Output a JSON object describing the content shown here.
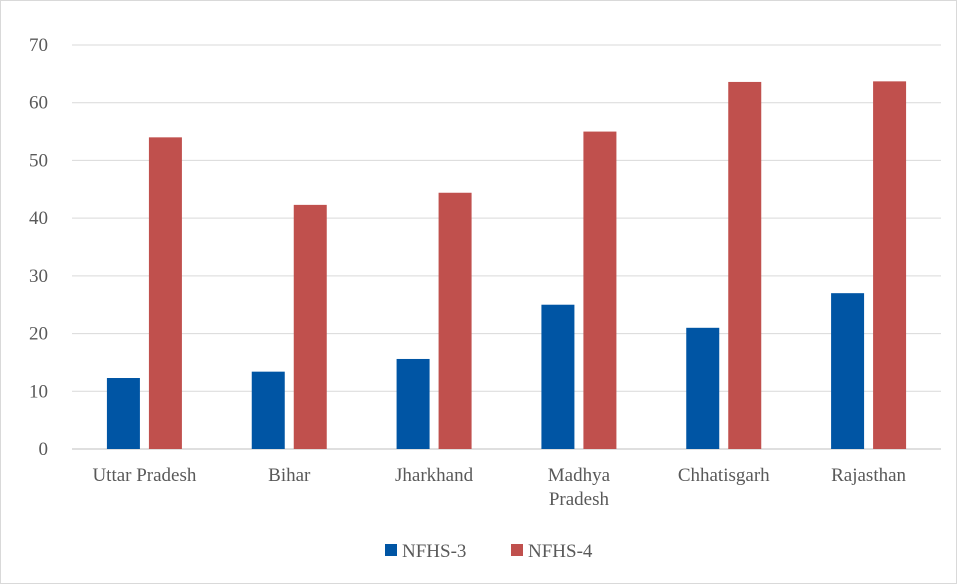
{
  "chart_data": {
    "type": "bar",
    "categories": [
      [
        "Uttar Pradesh"
      ],
      [
        "Bihar"
      ],
      [
        "Jharkhand"
      ],
      [
        "Madhya",
        "Pradesh"
      ],
      [
        "Chhatisgarh"
      ],
      [
        "Rajasthan"
      ]
    ],
    "series": [
      {
        "name": "NFHS-3",
        "color": "#0055a4",
        "values": [
          12.3,
          13.4,
          15.6,
          25.0,
          21.0,
          27.0
        ]
      },
      {
        "name": "NFHS-4",
        "color": "#c0504d",
        "values": [
          54.0,
          42.3,
          44.4,
          55.0,
          63.6,
          63.7
        ]
      }
    ],
    "yticks": [
      0,
      10,
      20,
      30,
      40,
      50,
      60,
      70
    ],
    "ylim": [
      0,
      70
    ],
    "grid": true,
    "legend_position": "bottom"
  }
}
